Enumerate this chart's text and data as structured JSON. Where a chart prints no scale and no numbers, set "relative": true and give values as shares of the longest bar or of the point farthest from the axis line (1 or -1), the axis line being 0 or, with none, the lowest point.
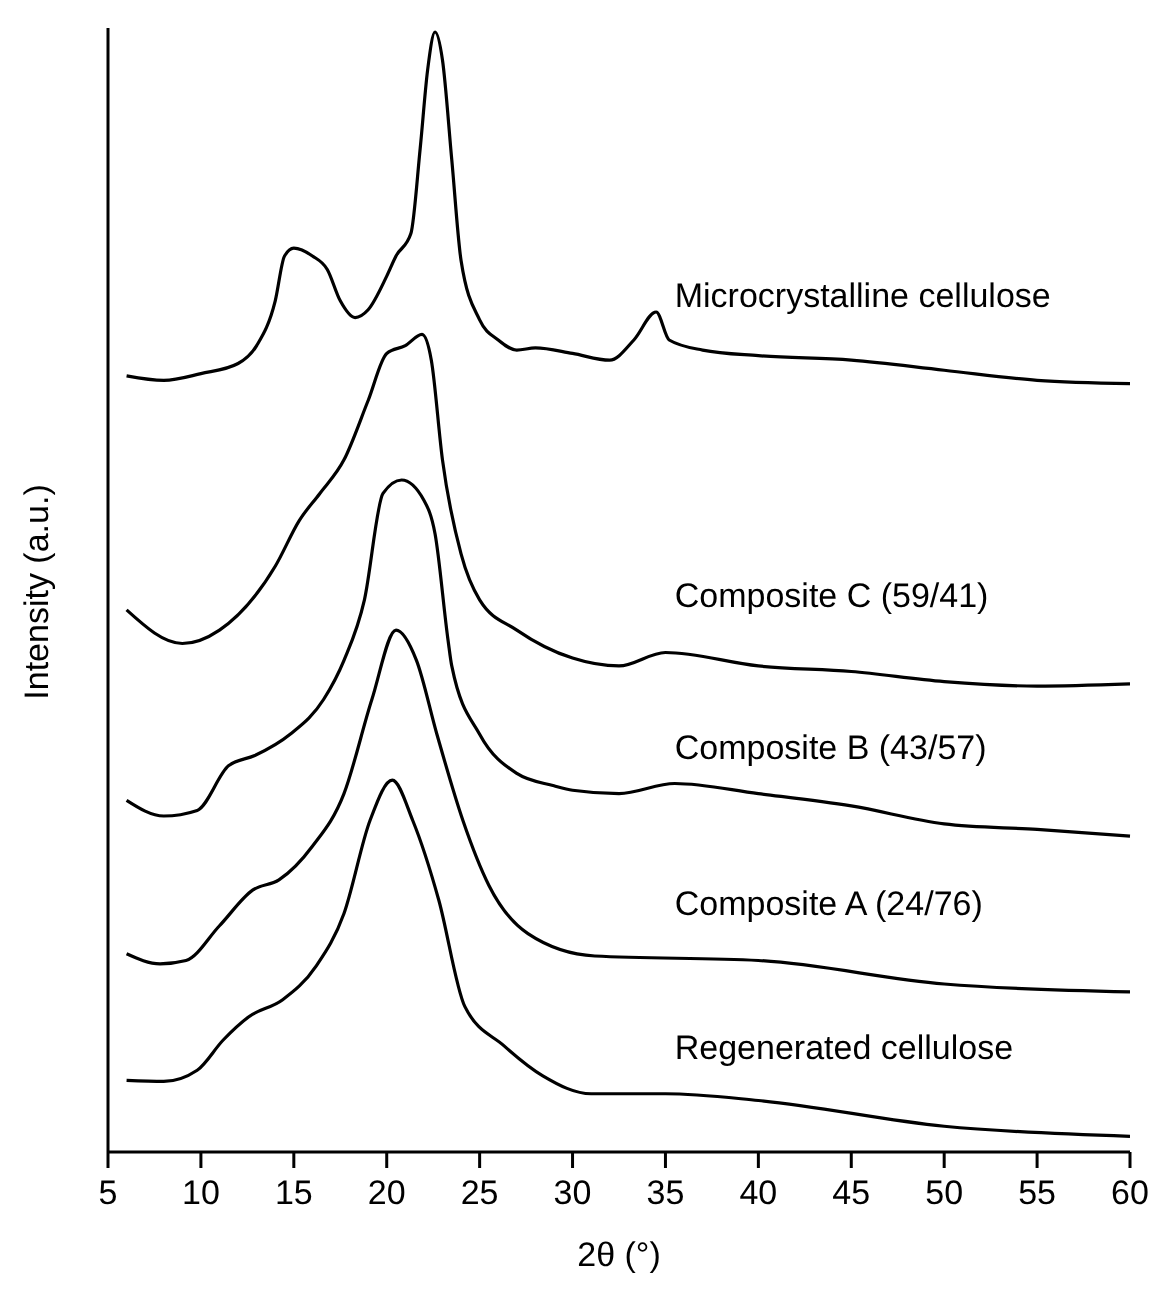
{
  "chart_data": {
    "type": "line",
    "relative": true,
    "xlabel": "2θ (°)",
    "ylabel": "Intensity (a.u.)",
    "xlim": [
      5,
      60
    ],
    "xticks": [
      5,
      10,
      15,
      20,
      25,
      30,
      35,
      40,
      45,
      50,
      55,
      60
    ],
    "line_style": "solid",
    "marker": "none",
    "series": [
      {
        "name": "Microcrystalline cellulose",
        "color": "#000000",
        "x": [
          6,
          8,
          10,
          12,
          13,
          14,
          14.5,
          15,
          16,
          16.8,
          17.5,
          18.3,
          19,
          20,
          20.5,
          21.3,
          21.8,
          22.2,
          22.6,
          23,
          23.5,
          24,
          25,
          26,
          27,
          28,
          30,
          32,
          33.3,
          34.5,
          35.2,
          37,
          40,
          45,
          50,
          55,
          60
        ],
        "values": [
          0.693,
          0.689,
          0.695,
          0.704,
          0.72,
          0.76,
          0.8,
          0.807,
          0.8,
          0.788,
          0.76,
          0.745,
          0.752,
          0.782,
          0.8,
          0.82,
          0.896,
          0.966,
          1.0,
          0.975,
          0.886,
          0.796,
          0.743,
          0.725,
          0.716,
          0.718,
          0.713,
          0.707,
          0.725,
          0.75,
          0.725,
          0.716,
          0.711,
          0.707,
          0.698,
          0.689,
          0.686
        ]
      },
      {
        "name": "Composite C (59/41)",
        "color": "#000000",
        "x": [
          6,
          9,
          11,
          14,
          15.3,
          16.4,
          17.7,
          19,
          20,
          21,
          21.9,
          22.4,
          23,
          24,
          25,
          27,
          30,
          32.5,
          35,
          40,
          45,
          50,
          55,
          60
        ],
        "values": [
          0.484,
          0.454,
          0.466,
          0.523,
          0.564,
          0.588,
          0.618,
          0.671,
          0.713,
          0.72,
          0.73,
          0.707,
          0.618,
          0.534,
          0.493,
          0.466,
          0.441,
          0.434,
          0.446,
          0.434,
          0.429,
          0.42,
          0.416,
          0.418
        ]
      },
      {
        "name": "Composite B (43/57)",
        "color": "#000000",
        "x": [
          6,
          8,
          9.8,
          11.5,
          12.9,
          14.8,
          16.6,
          17.7,
          18.8,
          19.8,
          20.8,
          22,
          22.6,
          23.3,
          23.5,
          25,
          27,
          29,
          30,
          32.5,
          35.5,
          40,
          45,
          50,
          55,
          60
        ],
        "values": [
          0.314,
          0.3,
          0.305,
          0.345,
          0.354,
          0.373,
          0.404,
          0.439,
          0.493,
          0.588,
          0.6,
          0.582,
          0.552,
          0.457,
          0.434,
          0.373,
          0.338,
          0.327,
          0.323,
          0.32,
          0.329,
          0.32,
          0.309,
          0.293,
          0.288,
          0.282
        ]
      },
      {
        "name": "Composite A (24/76)",
        "color": "#000000",
        "x": [
          6,
          7.8,
          9.2,
          11,
          12.8,
          14.2,
          16,
          17.7,
          19.2,
          20.5,
          21.6,
          22.7,
          24.1,
          25.5,
          27.6,
          31.2,
          40,
          50,
          60
        ],
        "values": [
          0.177,
          0.168,
          0.171,
          0.202,
          0.234,
          0.243,
          0.273,
          0.32,
          0.404,
          0.466,
          0.439,
          0.373,
          0.296,
          0.238,
          0.195,
          0.175,
          0.171,
          0.15,
          0.143
        ]
      },
      {
        "name": "Regenerated cellulose",
        "color": "#000000",
        "x": [
          6,
          8,
          9.8,
          11.2,
          12.6,
          14.4,
          16.2,
          17.7,
          19.1,
          20.3,
          21.4,
          22.8,
          24.2,
          26.3,
          28.4,
          31,
          35,
          40,
          50,
          60
        ],
        "values": [
          0.064,
          0.063,
          0.073,
          0.1,
          0.121,
          0.136,
          0.166,
          0.213,
          0.296,
          0.332,
          0.296,
          0.225,
          0.13,
          0.095,
          0.068,
          0.052,
          0.052,
          0.046,
          0.023,
          0.014
        ]
      }
    ]
  }
}
